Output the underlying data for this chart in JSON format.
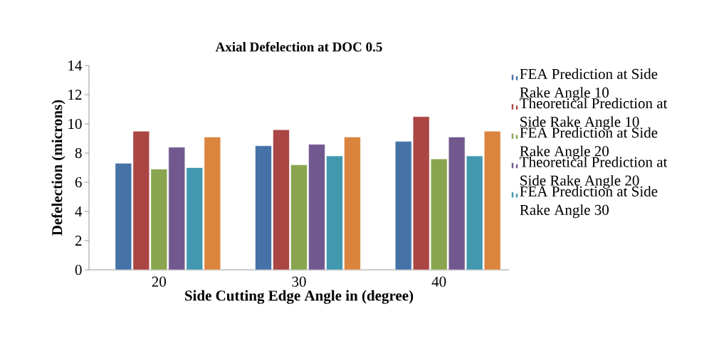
{
  "chart_data": {
    "type": "bar",
    "title": "Axial Defelection at DOC 0.5",
    "xlabel": "Side Cutting Edge Angle in (degree)",
    "ylabel": "Defelection (microns)",
    "categories": [
      "20",
      "30",
      "40"
    ],
    "series": [
      {
        "name": "FEA Prediction at Side Rake Angle 10",
        "color": "#4572a7",
        "values": [
          7.3,
          8.5,
          8.8
        ]
      },
      {
        "name": "Theoretical Prediction at Side Rake Angle 10",
        "color": "#aa4643",
        "values": [
          9.5,
          9.6,
          10.5
        ]
      },
      {
        "name": "FEA Prediction at Side Rake Angle 20",
        "color": "#89a54e",
        "values": [
          6.9,
          7.2,
          7.6
        ]
      },
      {
        "name": "Theoretical Prediction at Side Rake Angle 20",
        "color": "#71588f",
        "values": [
          8.4,
          8.6,
          9.1
        ]
      },
      {
        "name": "FEA Prediction at Side Rake Angle 30",
        "color": "#4198af",
        "values": [
          7.0,
          7.8,
          7.8
        ]
      },
      {
        "color": "#db843d",
        "values": [
          9.1,
          9.1,
          9.5
        ]
      }
    ],
    "ylim": [
      0,
      14
    ],
    "yticks": [
      0,
      2,
      4,
      6,
      8,
      10,
      12,
      14
    ],
    "grid": false,
    "legend": "right"
  }
}
